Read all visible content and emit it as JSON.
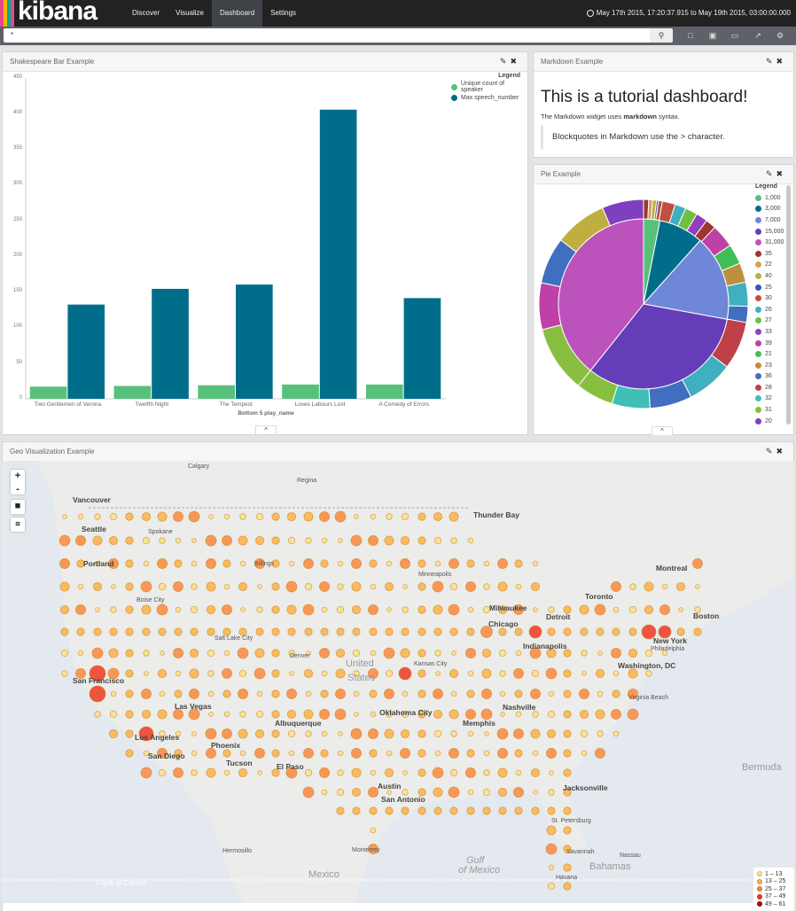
{
  "app": {
    "logo": "kibana",
    "logo_colors": [
      "#e8478b",
      "#f0b400",
      "#00a69b",
      "#e8478b"
    ]
  },
  "nav": {
    "items": [
      "Discover",
      "Visualize",
      "Dashboard",
      "Settings"
    ],
    "active": "Dashboard",
    "time_range": "May 17th 2015, 17:20:37.915 to May 19th 2015, 03:00:00.000"
  },
  "search": {
    "value": "*",
    "icons": [
      "search-icon",
      "new-dashboard-icon",
      "save-icon",
      "open-icon",
      "share-icon",
      "settings-icon"
    ]
  },
  "bar_panel": {
    "title": "Shakespeare Bar Example",
    "legend_title": "Legend",
    "caret": "^"
  },
  "markdown_panel": {
    "title": "Markdown Example",
    "heading": "This is a tutorial dashboard!",
    "para_before": "The Markdown widget uses ",
    "para_bold": "markdown",
    "para_after": " syntax.",
    "blockquote": "Blockquotes in Markdown use the > character."
  },
  "pie_panel": {
    "title": "Pie Example",
    "legend_title": "Legend",
    "caret": "^"
  },
  "geo_panel": {
    "title": "Geo Visualization Example",
    "controls": [
      "+",
      "-",
      "■",
      "⌗"
    ],
    "legend": [
      {
        "label": "1 – 13",
        "color": "#fee187"
      },
      {
        "label": "13 – 25",
        "color": "#fdb346"
      },
      {
        "label": "25 – 37",
        "color": "#fc8a3c"
      },
      {
        "label": "37 – 49",
        "color": "#ee3b22"
      },
      {
        "label": "49 – 61",
        "color": "#b90026"
      }
    ],
    "labels": [
      "Vancouver",
      "Seattle",
      "Portland",
      "San Francisco",
      "Los Angeles",
      "San Diego",
      "Las Vegas",
      "Phoenix",
      "Tucson",
      "El Paso",
      "Albuquerque",
      "Salt Lake City",
      "Denver",
      "Billings",
      "Calgary",
      "Regina",
      "Minneapolis",
      "Chicago",
      "Detroit",
      "Toronto",
      "Montreal",
      "Boston",
      "New York",
      "Washington, DC",
      "Philadelphia",
      "Kansas City",
      "Oklahoma City",
      "Austin",
      "San Antonio",
      "Nashville",
      "Memphis",
      "Jacksonville",
      "St. Petersburg",
      "Nassau",
      "Havana",
      "Monterrey",
      "Mexico",
      "Gulf",
      "of Mexico",
      "United",
      "States",
      "Bermuda",
      "Bahamas",
      "Thunder Bay",
      "Tropic of Cancer",
      "Milwaukee",
      "Indianapolis",
      "Virginia Beach",
      "Savannah",
      "Boise City",
      "Spokane",
      "Hermosillo"
    ]
  },
  "chart_data": [
    {
      "type": "bar",
      "title": "",
      "xlabel": "Bottom 5 play_name",
      "ylabel": "",
      "ylim": [
        0,
        450
      ],
      "yticks": [
        0,
        50,
        100,
        150,
        200,
        250,
        300,
        350,
        400,
        450
      ],
      "legend": "top-right",
      "categories": [
        "Two Gentlemen of Verona",
        "Twelfth Night",
        "The Tempest",
        "Loves Labours Lost",
        "A Comedy of Errors"
      ],
      "series": [
        {
          "name": "Unique count of speaker",
          "color": "#57c17b",
          "values": [
            17,
            18,
            19,
            20,
            20
          ]
        },
        {
          "name": "Max speech_number",
          "color": "#006e8a",
          "values": [
            132,
            154,
            160,
            405,
            141
          ]
        }
      ]
    },
    {
      "type": "pie",
      "donut_rings": 2,
      "legend": "right",
      "legend_entries": [
        {
          "label": "1,000",
          "color": "#57c17b"
        },
        {
          "label": "3,000",
          "color": "#006e8a"
        },
        {
          "label": "7,000",
          "color": "#6f87d8"
        },
        {
          "label": "15,000",
          "color": "#663db8"
        },
        {
          "label": "31,000",
          "color": "#bc52bc"
        },
        {
          "label": "35",
          "color": "#9e3533"
        },
        {
          "label": "22",
          "color": "#daa05d"
        },
        {
          "label": "40",
          "color": "#bfaf40"
        },
        {
          "label": "25",
          "color": "#4050bf"
        },
        {
          "label": "30",
          "color": "#bf5040"
        },
        {
          "label": "26",
          "color": "#40afbf"
        },
        {
          "label": "27",
          "color": "#70bf40"
        },
        {
          "label": "33",
          "color": "#9040bf"
        },
        {
          "label": "39",
          "color": "#bf40a7"
        },
        {
          "label": "21",
          "color": "#40bf58"
        },
        {
          "label": "23",
          "color": "#bf8f40"
        },
        {
          "label": "36",
          "color": "#406fbf"
        },
        {
          "label": "28",
          "color": "#bf4048"
        },
        {
          "label": "32",
          "color": "#40bfb7"
        },
        {
          "label": "31",
          "color": "#88bf40"
        },
        {
          "label": "20",
          "color": "#7f40bf"
        }
      ],
      "inner": [
        {
          "label": "1,000",
          "value": 3.1
        },
        {
          "label": "3,000",
          "value": 8.5
        },
        {
          "label": "7,000",
          "value": 16.3
        },
        {
          "label": "15,000",
          "value": 32.8
        },
        {
          "label": "31,000",
          "value": 39.3
        }
      ],
      "outer": [
        {
          "label": "35",
          "value": 0.8
        },
        {
          "label": "22",
          "value": 0.6
        },
        {
          "label": "40",
          "value": 0.6
        },
        {
          "label": "25",
          "value": 0.3
        },
        {
          "label": "30",
          "value": 0.6
        },
        {
          "label": "30",
          "value": 2.0
        },
        {
          "label": "26",
          "value": 1.7
        },
        {
          "label": "27",
          "value": 1.9
        },
        {
          "label": "33",
          "value": 1.8
        },
        {
          "label": "35",
          "value": 1.6
        },
        {
          "label": "39",
          "value": 3.6
        },
        {
          "label": "21",
          "value": 3.1
        },
        {
          "label": "23",
          "value": 3.0
        },
        {
          "label": "26",
          "value": 3.7
        },
        {
          "label": "36",
          "value": 2.5
        },
        {
          "label": "28",
          "value": 7.4
        },
        {
          "label": "26",
          "value": 7.2
        },
        {
          "label": "36",
          "value": 6.5
        },
        {
          "label": "32",
          "value": 5.9
        },
        {
          "label": "31",
          "value": 5.8
        },
        {
          "label": "31",
          "value": 10.3
        },
        {
          "label": "39",
          "value": 7.2
        },
        {
          "label": "36",
          "value": 7.2
        },
        {
          "label": "40",
          "value": 8.1
        },
        {
          "label": "20",
          "value": 6.4
        }
      ]
    }
  ]
}
